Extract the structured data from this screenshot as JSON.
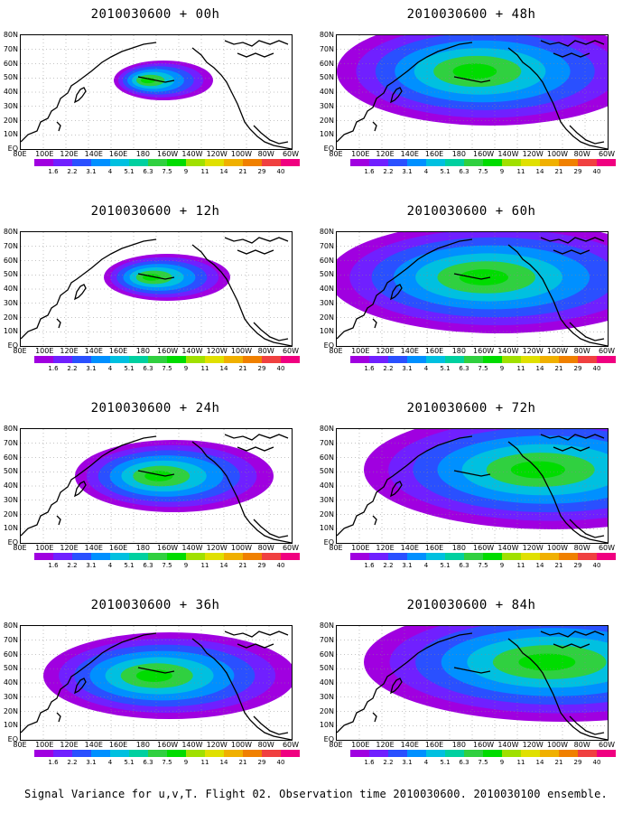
{
  "caption": "Signal Variance for u,v,T. Flight 02. Observation time 2010030600. 2010030100 ensemble.",
  "lat_labels": [
    "80N",
    "70N",
    "60N",
    "50N",
    "40N",
    "30N",
    "20N",
    "10N",
    "EQ"
  ],
  "lon_labels": [
    "80E",
    "100E",
    "120E",
    "140E",
    "160E",
    "180",
    "160W",
    "140W",
    "120W",
    "100W",
    "80W",
    "60W"
  ],
  "colorbar": {
    "labels": [
      "1.6",
      "2.2",
      "3.1",
      "4",
      "5.1",
      "6.3",
      "7.5",
      "9",
      "11",
      "14",
      "21",
      "29",
      "40"
    ],
    "colors": [
      "#a000e0",
      "#7020ff",
      "#2a50ff",
      "#0090ff",
      "#00c0e0",
      "#00d0a0",
      "#30d040",
      "#00dc00",
      "#a0e000",
      "#e0e000",
      "#f0b000",
      "#f08000",
      "#f04040",
      "#f00080"
    ]
  },
  "panels": [
    {
      "title": "2010030600 + 00h",
      "extent": "small",
      "hotspot": [
        158,
        50
      ]
    },
    {
      "title": "2010030600 + 12h",
      "extent": "small2",
      "hotspot": [
        162,
        50
      ]
    },
    {
      "title": "2010030600 + 24h",
      "extent": "medium",
      "hotspot": [
        170,
        52
      ]
    },
    {
      "title": "2010030600 + 36h",
      "extent": "medium2",
      "hotspot": [
        165,
        55
      ]
    },
    {
      "title": "2010030600 + 48h",
      "extent": "large",
      "hotspot": [
        170,
        40
      ]
    },
    {
      "title": "2010030600 + 60h",
      "extent": "large2",
      "hotspot": [
        180,
        50
      ]
    },
    {
      "title": "2010030600 + 72h",
      "extent": "large3",
      "hotspot": [
        240,
        45
      ]
    },
    {
      "title": "2010030600 + 84h",
      "extent": "large4",
      "hotspot": [
        250,
        40
      ]
    }
  ]
}
